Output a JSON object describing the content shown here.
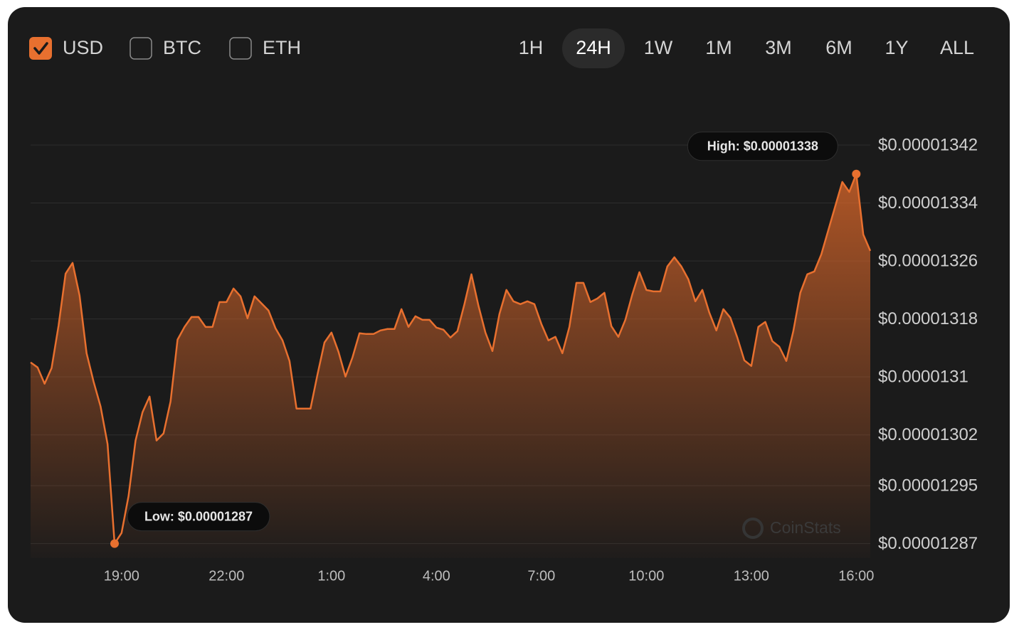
{
  "currencies": [
    {
      "label": "USD",
      "checked": true
    },
    {
      "label": "BTC",
      "checked": false
    },
    {
      "label": "ETH",
      "checked": false
    }
  ],
  "ranges": [
    {
      "label": "1H",
      "selected": false
    },
    {
      "label": "24H",
      "selected": true
    },
    {
      "label": "1W",
      "selected": false
    },
    {
      "label": "1M",
      "selected": false
    },
    {
      "label": "3M",
      "selected": false
    },
    {
      "label": "6M",
      "selected": false
    },
    {
      "label": "1Y",
      "selected": false
    },
    {
      "label": "ALL",
      "selected": false
    }
  ],
  "watermark": "CoinStats",
  "chart_data": {
    "type": "area",
    "annotations": {
      "high": "High: $0.00001338",
      "low": "Low: $0.00001287"
    },
    "xlim": [
      16.4,
      40.4
    ],
    "xticks": [
      {
        "value": 19,
        "label": "19:00"
      },
      {
        "value": 22,
        "label": "22:00"
      },
      {
        "value": 25,
        "label": "1:00"
      },
      {
        "value": 28,
        "label": "4:00"
      },
      {
        "value": 31,
        "label": "7:00"
      },
      {
        "value": 34,
        "label": "10:00"
      },
      {
        "value": 37,
        "label": "13:00"
      },
      {
        "value": 40,
        "label": "16:00"
      }
    ],
    "ylim": [
      1.285e-05,
      1.34337e-05
    ],
    "yticks": [
      {
        "value": 1.342e-05,
        "label": "$0.00001342"
      },
      {
        "value": 1.334e-05,
        "label": "$0.00001334"
      },
      {
        "value": 1.326e-05,
        "label": "$0.00001326"
      },
      {
        "value": 1.318e-05,
        "label": "$0.00001318"
      },
      {
        "value": 1.31e-05,
        "label": "$0.0000131"
      },
      {
        "value": 1.302e-05,
        "label": "$0.00001302"
      },
      {
        "value": 1.295e-05,
        "label": "$0.00001295"
      },
      {
        "value": 1.287e-05,
        "label": "$0.00001287"
      }
    ],
    "grid": true,
    "x": [
      16.4,
      16.6,
      16.8,
      17,
      17.2,
      17.4,
      17.6,
      17.8,
      18,
      18.2,
      18.4,
      18.6,
      18.8,
      19,
      19.2,
      19.4,
      19.6,
      19.8,
      20,
      20.2,
      20.4,
      20.6,
      20.8,
      21,
      21.2,
      21.4,
      21.6,
      21.8,
      22,
      22.2,
      22.4,
      22.6,
      22.8,
      23,
      23.2,
      23.4,
      23.6,
      23.8,
      24,
      24.2,
      24.4,
      24.6,
      24.8,
      25,
      25.2,
      25.4,
      25.6,
      25.8,
      26,
      26.2,
      26.4,
      26.6,
      26.8,
      27,
      27.2,
      27.4,
      27.6,
      27.8,
      28,
      28.2,
      28.4,
      28.6,
      28.8,
      29,
      29.2,
      29.4,
      29.6,
      29.8,
      30,
      30.2,
      30.4,
      30.6,
      30.8,
      31,
      31.2,
      31.4,
      31.6,
      31.8,
      32,
      32.2,
      32.4,
      32.6,
      32.8,
      33,
      33.2,
      33.4,
      33.6,
      33.8,
      34,
      34.2,
      34.4,
      34.6,
      34.8,
      35,
      35.2,
      35.4,
      35.6,
      35.8,
      36,
      36.2,
      36.4,
      36.6,
      36.8,
      37,
      37.2,
      37.4,
      37.6,
      37.8,
      38,
      38.2,
      38.4,
      38.6,
      38.8,
      39,
      39.2,
      39.4,
      39.6,
      39.8,
      40,
      40.2,
      40.4
    ],
    "series": [
      {
        "name": "USD",
        "color": "#e8702f",
        "values": [
          1.312e-05,
          1.31131e-05,
          1.30906e-05,
          1.31122e-05,
          1.3171e-05,
          1.32425e-05,
          1.32573e-05,
          1.32122e-05,
          1.31327e-05,
          1.30935e-05,
          1.30592e-05,
          1.30073e-05,
          1.287e-05,
          1.28847e-05,
          1.29357e-05,
          1.30122e-05,
          1.30514e-05,
          1.30729e-05,
          1.30122e-05,
          1.3022e-05,
          1.30661e-05,
          1.31514e-05,
          1.3169e-05,
          1.31827e-05,
          1.31827e-05,
          1.3169e-05,
          1.3169e-05,
          1.32033e-05,
          1.32033e-05,
          1.3222e-05,
          1.32112e-05,
          1.31808e-05,
          1.32112e-05,
          1.32014e-05,
          1.31916e-05,
          1.31671e-05,
          1.31504e-05,
          1.3122e-05,
          1.30563e-05,
          1.30563e-05,
          1.30563e-05,
          1.31033e-05,
          1.31475e-05,
          1.31612e-05,
          1.31347e-05,
          1.31004e-05,
          1.31269e-05,
          1.31602e-05,
          1.31592e-05,
          1.31592e-05,
          1.31641e-05,
          1.31661e-05,
          1.31661e-05,
          1.31935e-05,
          1.3169e-05,
          1.31837e-05,
          1.31788e-05,
          1.31788e-05,
          1.3168e-05,
          1.31651e-05,
          1.31543e-05,
          1.31631e-05,
          1.32004e-05,
          1.32416e-05,
          1.31984e-05,
          1.31612e-05,
          1.31357e-05,
          1.31867e-05,
          1.322e-05,
          1.32043e-05,
          1.32004e-05,
          1.32043e-05,
          1.32004e-05,
          1.31729e-05,
          1.31504e-05,
          1.31553e-05,
          1.31327e-05,
          1.3169e-05,
          1.32298e-05,
          1.32298e-05,
          1.32033e-05,
          1.32082e-05,
          1.32161e-05,
          1.317e-05,
          1.31553e-05,
          1.31788e-05,
          1.32141e-05,
          1.32445e-05,
          1.322e-05,
          1.3218e-05,
          1.3218e-05,
          1.32524e-05,
          1.32651e-05,
          1.32524e-05,
          1.32347e-05,
          1.32043e-05,
          1.322e-05,
          1.31886e-05,
          1.31641e-05,
          1.31935e-05,
          1.31818e-05,
          1.31543e-05,
          1.31229e-05,
          1.31151e-05,
          1.3169e-05,
          1.31759e-05,
          1.31494e-05,
          1.31416e-05,
          1.3122e-05,
          1.31631e-05,
          1.32161e-05,
          1.32416e-05,
          1.32455e-05,
          1.3269e-05,
          1.33024e-05,
          1.33357e-05,
          1.3369e-05,
          1.33553e-05,
          1.338e-05,
          1.32965e-05,
          1.32739e-05
        ]
      }
    ]
  }
}
